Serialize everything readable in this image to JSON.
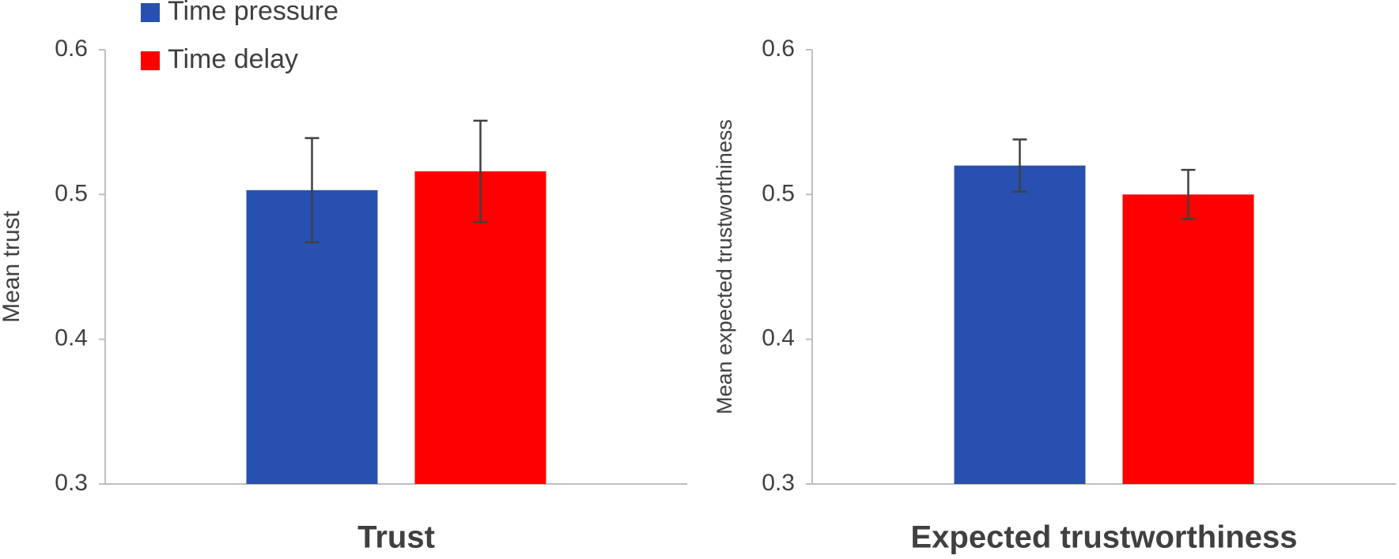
{
  "chart_data": [
    {
      "type": "bar",
      "ylabel": "Mean trust",
      "xlabel": "Trust",
      "ylim": [
        0.3,
        0.6
      ],
      "yticks": [
        0.3,
        0.4,
        0.5,
        0.6
      ],
      "grid": false,
      "legend": "upper left",
      "series": [
        {
          "name": "Time pressure",
          "color": "#2850b0",
          "values": [
            0.503
          ],
          "errors": [
            0.036
          ]
        },
        {
          "name": "Time delay",
          "color": "#ff0000",
          "values": [
            0.516
          ],
          "errors": [
            0.035
          ]
        }
      ]
    },
    {
      "type": "bar",
      "ylabel": "Mean expected trustworthiness",
      "xlabel": "Expected trustworthiness",
      "ylim": [
        0.3,
        0.6
      ],
      "yticks": [
        0.3,
        0.4,
        0.5,
        0.6
      ],
      "grid": false,
      "series": [
        {
          "color": "#2850b0",
          "values": [
            0.52
          ],
          "errors": [
            0.018
          ]
        },
        {
          "color": "#ff0000",
          "values": [
            0.5
          ],
          "errors": [
            0.017
          ]
        }
      ]
    }
  ]
}
